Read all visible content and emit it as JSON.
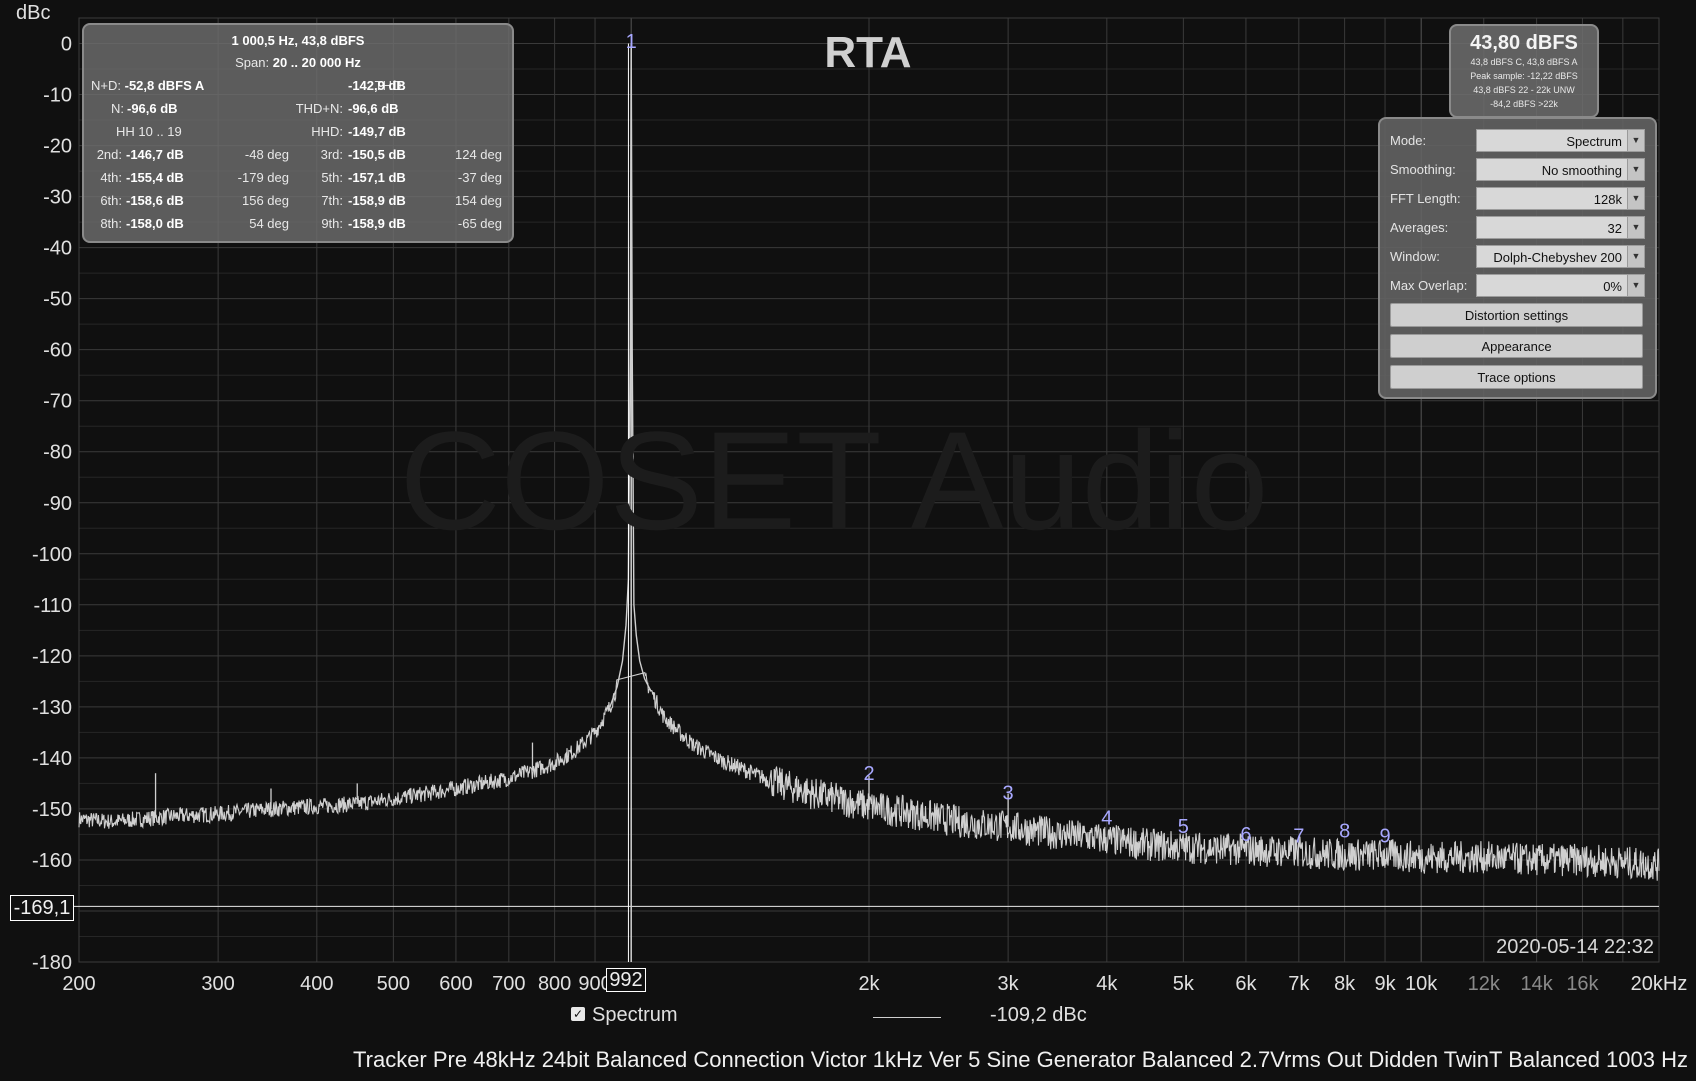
{
  "stats": {
    "header_freq": "1 000,5 Hz, 43,8 dBFS",
    "span_label": "Span:",
    "span_value": "20 .. 20 000 Hz",
    "nd_label": "N+D:",
    "nd_value": "-52,8 dBFS A",
    "thd_label": "THD:",
    "thd_value": "-142,9 dB",
    "n_label": "N:",
    "n_value": "-96,6 dB",
    "thdn_label": "THD+N:",
    "thdn_value": "-96,6 dB",
    "hh_label": "HH 10 .. 19",
    "hhd_label": "HHD:",
    "hhd_value": "-149,7 dB",
    "harmonics": [
      {
        "label": "2nd:",
        "value": "-146,7 dB",
        "phase": "-48 deg"
      },
      {
        "label": "3rd:",
        "value": "-150,5 dB",
        "phase": "124 deg"
      },
      {
        "label": "4th:",
        "value": "-155,4 dB",
        "phase": "-179 deg"
      },
      {
        "label": "5th:",
        "value": "-157,1 dB",
        "phase": "-37 deg"
      },
      {
        "label": "6th:",
        "value": "-158,6 dB",
        "phase": "156 deg"
      },
      {
        "label": "7th:",
        "value": "-158,9 dB",
        "phase": "154 deg"
      },
      {
        "label": "8th:",
        "value": "-158,0 dB",
        "phase": "54 deg"
      },
      {
        "label": "9th:",
        "value": "-158,9 dB",
        "phase": "-65 deg"
      }
    ]
  },
  "level": {
    "main": "43,80 dBFS",
    "lines": [
      "43,8 dBFS C, 43,8 dBFS A",
      "Peak sample: -12,22 dBFS",
      "43,8 dBFS 22 - 22k UNW",
      "-84,2 dBFS >22k"
    ]
  },
  "settings": {
    "rows": [
      {
        "label": "Mode:",
        "value": "Spectrum"
      },
      {
        "label": "Smoothing:",
        "value": "No  smoothing"
      },
      {
        "label": "FFT Length:",
        "value": "128k"
      },
      {
        "label": "Averages:",
        "value": "32"
      },
      {
        "label": "Window:",
        "value": "Dolph-Chebyshev 200"
      },
      {
        "label": "Max Overlap:",
        "value": "0%"
      }
    ],
    "buttons": [
      "Distortion settings",
      "Appearance",
      "Trace options"
    ]
  },
  "title": "RTA",
  "watermark": "COSET Audio",
  "timestamp": "2020-05-14 22:32",
  "legend": {
    "checkbox": "✓",
    "name": "Spectrum",
    "value": "-109,2 dBc"
  },
  "caption": "Tracker Pre 48kHz 24bit Balanced Connection Victor 1kHz Ver 5 Sine Generator Balanced 2.7Vrms Out Didden TwinT Balanced 1003 Hz",
  "marker_label": "-169,1",
  "peak_label": "992",
  "colors": {
    "trace": "#cfcfcf",
    "grid_major": "#3a3a3a",
    "grid_minor": "#262626",
    "harmonic_label": "#a8a8ff",
    "background": "#101010"
  },
  "chart_data": {
    "type": "line",
    "title": "RTA",
    "ylabel": "dBc",
    "xlabel": "",
    "x_scale": "log",
    "xlim": [
      200,
      20000
    ],
    "ylim": [
      -180,
      5
    ],
    "grid": true,
    "y_ticks": [
      0,
      -10,
      -20,
      -30,
      -40,
      -50,
      -60,
      -70,
      -80,
      -90,
      -100,
      -110,
      -120,
      -130,
      -140,
      -150,
      -160,
      -170,
      -180
    ],
    "x_ticks": [
      {
        "value": 200,
        "label": "200"
      },
      {
        "value": 300,
        "label": "300"
      },
      {
        "value": 400,
        "label": "400"
      },
      {
        "value": 500,
        "label": "500"
      },
      {
        "value": 600,
        "label": "600"
      },
      {
        "value": 700,
        "label": "700"
      },
      {
        "value": 800,
        "label": "800"
      },
      {
        "value": 900,
        "label": "900"
      },
      {
        "value": 2000,
        "label": "2k"
      },
      {
        "value": 3000,
        "label": "3k"
      },
      {
        "value": 4000,
        "label": "4k"
      },
      {
        "value": 5000,
        "label": "5k"
      },
      {
        "value": 6000,
        "label": "6k"
      },
      {
        "value": 7000,
        "label": "7k"
      },
      {
        "value": 8000,
        "label": "8k"
      },
      {
        "value": 9000,
        "label": "9k"
      },
      {
        "value": 10000,
        "label": "10k"
      },
      {
        "value": 12000,
        "label": "12k",
        "dim": true
      },
      {
        "value": 14000,
        "label": "14k",
        "dim": true
      },
      {
        "value": 16000,
        "label": "16k",
        "dim": true
      },
      {
        "value": 20000,
        "label": "20kHz"
      }
    ],
    "series": [
      {
        "name": "Spectrum",
        "x": [
          200,
          220,
          260,
          300,
          350,
          400,
          450,
          500,
          550,
          600,
          650,
          700,
          750,
          800,
          850,
          900,
          940,
          960,
          975,
          985,
          992,
          997,
          1000,
          1003,
          1008,
          1015,
          1025,
          1040,
          1060,
          1100,
          1150,
          1200,
          1300,
          1400,
          1500,
          1700,
          2000,
          2300,
          2600,
          3000,
          3500,
          4000,
          4500,
          5000,
          6000,
          7000,
          8000,
          9000,
          10000,
          12000,
          14000,
          16000,
          18000,
          20000
        ],
        "y": [
          -152,
          -152.5,
          -151.5,
          -151,
          -150,
          -149.5,
          -149,
          -148,
          -147,
          -146,
          -145,
          -144,
          -142.5,
          -141,
          -138.5,
          -135,
          -130,
          -126,
          -121,
          -114,
          -105,
          -60,
          0,
          -60,
          -110,
          -116,
          -121,
          -124.5,
          -127,
          -132,
          -135,
          -137.5,
          -140.5,
          -142.5,
          -144.5,
          -147,
          -149.5,
          -151,
          -152.5,
          -153.5,
          -155,
          -156,
          -157,
          -157.5,
          -158,
          -158.5,
          -159,
          -159,
          -159.5,
          -159.5,
          -160,
          -160,
          -160.5,
          -161
        ]
      }
    ],
    "spikes": [
      {
        "x": 250,
        "y": -143
      },
      {
        "x": 350,
        "y": -146
      },
      {
        "x": 450,
        "y": -145
      },
      {
        "x": 750,
        "y": -137
      },
      {
        "x": 2000,
        "y": -143.5
      },
      {
        "x": 3000,
        "y": -147
      }
    ],
    "harmonic_markers": [
      {
        "label": "1",
        "x": 1000,
        "y": 0
      },
      {
        "label": "2",
        "x": 2000,
        "y": -146.7
      },
      {
        "label": "3",
        "x": 3000,
        "y": -150.5
      },
      {
        "label": "4",
        "x": 4000,
        "y": -155.4
      },
      {
        "label": "5",
        "x": 5000,
        "y": -157.1
      },
      {
        "label": "6",
        "x": 6000,
        "y": -158.6
      },
      {
        "label": "7",
        "x": 7000,
        "y": -158.9
      },
      {
        "label": "8",
        "x": 8000,
        "y": -158.0
      },
      {
        "label": "9",
        "x": 9000,
        "y": -158.9
      }
    ],
    "marker_level": -169.1,
    "peak_frequency": 992
  }
}
